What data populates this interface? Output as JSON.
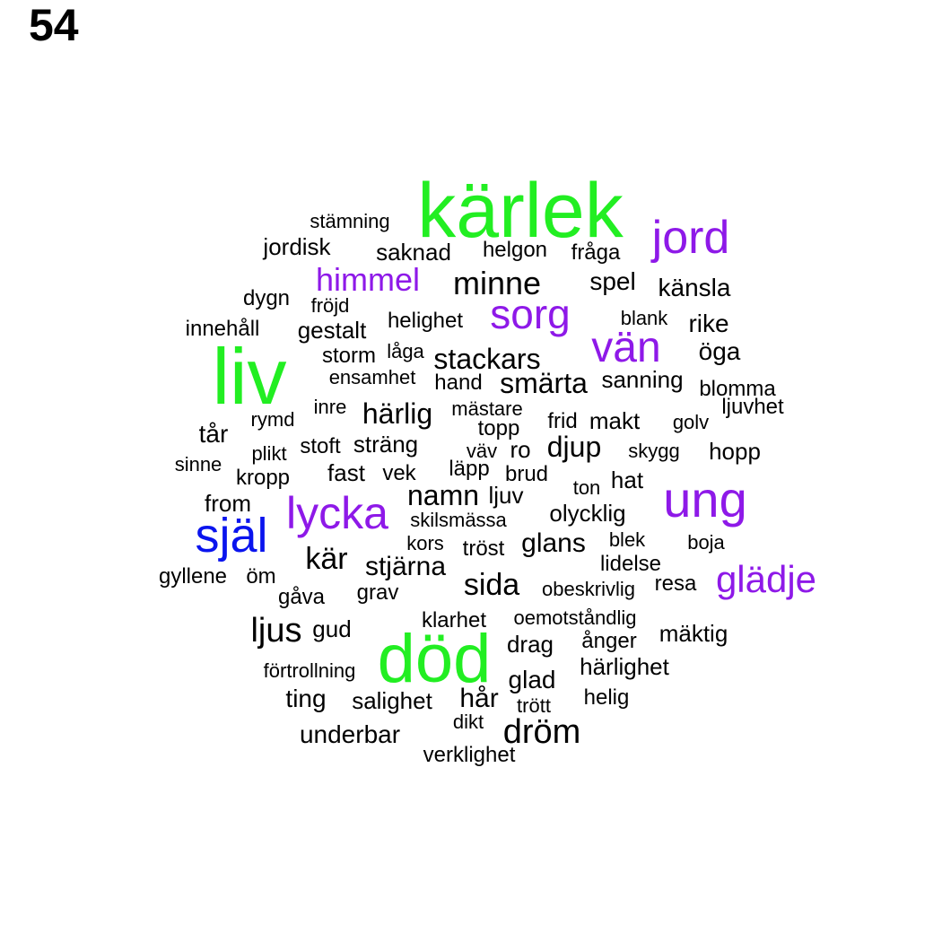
{
  "page_number": "54",
  "colors": {
    "large": "#22ee22",
    "medium": "#8e19e8",
    "accent": "#0a14ee",
    "default": "#000000"
  },
  "words": [
    {
      "text": "kärlek",
      "color": "#22ee22"
    },
    {
      "text": "liv",
      "color": "#22ee22"
    },
    {
      "text": "död",
      "color": "#22ee22"
    },
    {
      "text": "själ",
      "color": "#0a14ee"
    },
    {
      "text": "jord",
      "color": "#8e19e8"
    },
    {
      "text": "vän",
      "color": "#8e19e8"
    },
    {
      "text": "sorg",
      "color": "#8e19e8"
    },
    {
      "text": "ung",
      "color": "#8e19e8"
    },
    {
      "text": "lycka",
      "color": "#8e19e8"
    },
    {
      "text": "glädje",
      "color": "#8e19e8"
    },
    {
      "text": "himmel",
      "color": "#8e19e8"
    },
    {
      "text": "stämning",
      "color": "#000000"
    },
    {
      "text": "jordisk",
      "color": "#000000"
    },
    {
      "text": "saknad",
      "color": "#000000"
    },
    {
      "text": "helgon",
      "color": "#000000"
    },
    {
      "text": "fråga",
      "color": "#000000"
    },
    {
      "text": "minne",
      "color": "#000000"
    },
    {
      "text": "spel",
      "color": "#000000"
    },
    {
      "text": "känsla",
      "color": "#000000"
    },
    {
      "text": "dygn",
      "color": "#000000"
    },
    {
      "text": "fröjd",
      "color": "#000000"
    },
    {
      "text": "innehåll",
      "color": "#000000"
    },
    {
      "text": "gestalt",
      "color": "#000000"
    },
    {
      "text": "helighet",
      "color": "#000000"
    },
    {
      "text": "blank",
      "color": "#000000"
    },
    {
      "text": "rike",
      "color": "#000000"
    },
    {
      "text": "storm",
      "color": "#000000"
    },
    {
      "text": "låga",
      "color": "#000000"
    },
    {
      "text": "stackars",
      "color": "#000000"
    },
    {
      "text": "öga",
      "color": "#000000"
    },
    {
      "text": "ensamhet",
      "color": "#000000"
    },
    {
      "text": "hand",
      "color": "#000000"
    },
    {
      "text": "smärta",
      "color": "#000000"
    },
    {
      "text": "sanning",
      "color": "#000000"
    },
    {
      "text": "blomma",
      "color": "#000000"
    },
    {
      "text": "inre",
      "color": "#000000"
    },
    {
      "text": "härlig",
      "color": "#000000"
    },
    {
      "text": "mästare",
      "color": "#000000"
    },
    {
      "text": "ljuvhet",
      "color": "#000000"
    },
    {
      "text": "rymd",
      "color": "#000000"
    },
    {
      "text": "topp",
      "color": "#000000"
    },
    {
      "text": "frid",
      "color": "#000000"
    },
    {
      "text": "makt",
      "color": "#000000"
    },
    {
      "text": "golv",
      "color": "#000000"
    },
    {
      "text": "tår",
      "color": "#000000"
    },
    {
      "text": "stoft",
      "color": "#000000"
    },
    {
      "text": "sträng",
      "color": "#000000"
    },
    {
      "text": "väv",
      "color": "#000000"
    },
    {
      "text": "ro",
      "color": "#000000"
    },
    {
      "text": "djup",
      "color": "#000000"
    },
    {
      "text": "skygg",
      "color": "#000000"
    },
    {
      "text": "hopp",
      "color": "#000000"
    },
    {
      "text": "plikt",
      "color": "#000000"
    },
    {
      "text": "sinne",
      "color": "#000000"
    },
    {
      "text": "kropp",
      "color": "#000000"
    },
    {
      "text": "fast",
      "color": "#000000"
    },
    {
      "text": "vek",
      "color": "#000000"
    },
    {
      "text": "läpp",
      "color": "#000000"
    },
    {
      "text": "brud",
      "color": "#000000"
    },
    {
      "text": "hat",
      "color": "#000000"
    },
    {
      "text": "ton",
      "color": "#000000"
    },
    {
      "text": "namn",
      "color": "#000000"
    },
    {
      "text": "ljuv",
      "color": "#000000"
    },
    {
      "text": "from",
      "color": "#000000"
    },
    {
      "text": "olycklig",
      "color": "#000000"
    },
    {
      "text": "skilsmässa",
      "color": "#000000"
    },
    {
      "text": "kors",
      "color": "#000000"
    },
    {
      "text": "tröst",
      "color": "#000000"
    },
    {
      "text": "glans",
      "color": "#000000"
    },
    {
      "text": "blek",
      "color": "#000000"
    },
    {
      "text": "boja",
      "color": "#000000"
    },
    {
      "text": "kär",
      "color": "#000000"
    },
    {
      "text": "stjärna",
      "color": "#000000"
    },
    {
      "text": "lidelse",
      "color": "#000000"
    },
    {
      "text": "gyllene",
      "color": "#000000"
    },
    {
      "text": "öm",
      "color": "#000000"
    },
    {
      "text": "sida",
      "color": "#000000"
    },
    {
      "text": "resa",
      "color": "#000000"
    },
    {
      "text": "gåva",
      "color": "#000000"
    },
    {
      "text": "grav",
      "color": "#000000"
    },
    {
      "text": "obeskrivlig",
      "color": "#000000"
    },
    {
      "text": "ljus",
      "color": "#000000"
    },
    {
      "text": "gud",
      "color": "#000000"
    },
    {
      "text": "klarhet",
      "color": "#000000"
    },
    {
      "text": "oemotståndlig",
      "color": "#000000"
    },
    {
      "text": "mäktig",
      "color": "#000000"
    },
    {
      "text": "drag",
      "color": "#000000"
    },
    {
      "text": "ånger",
      "color": "#000000"
    },
    {
      "text": "förtrollning",
      "color": "#000000"
    },
    {
      "text": "härlighet",
      "color": "#000000"
    },
    {
      "text": "glad",
      "color": "#000000"
    },
    {
      "text": "ting",
      "color": "#000000"
    },
    {
      "text": "salighet",
      "color": "#000000"
    },
    {
      "text": "hår",
      "color": "#000000"
    },
    {
      "text": "helig",
      "color": "#000000"
    },
    {
      "text": "trött",
      "color": "#000000"
    },
    {
      "text": "dikt",
      "color": "#000000"
    },
    {
      "text": "underbar",
      "color": "#000000"
    },
    {
      "text": "dröm",
      "color": "#000000"
    },
    {
      "text": "verklighet",
      "color": "#000000"
    }
  ]
}
